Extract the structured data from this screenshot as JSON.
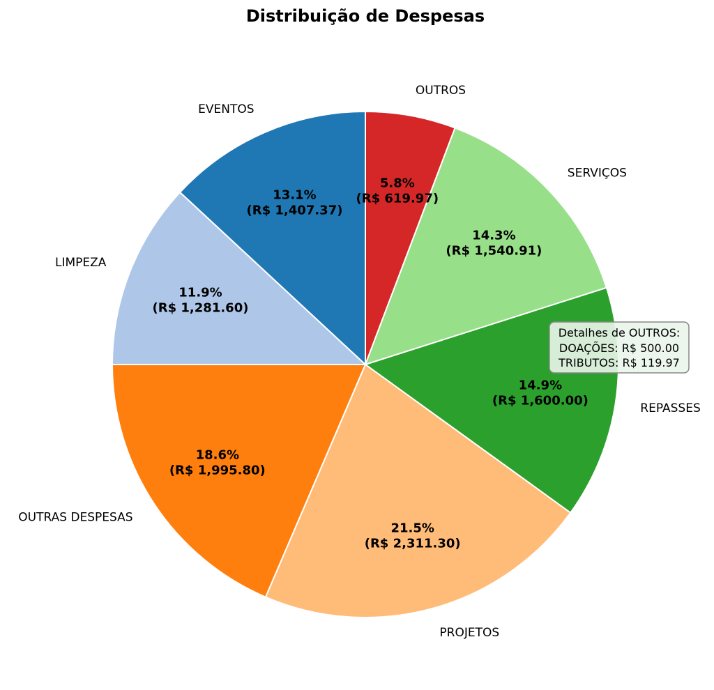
{
  "chart_data": {
    "type": "pie",
    "title": "Distribuição de Despesas",
    "start_angle_deg": 90,
    "direction": "clockwise",
    "slices": [
      {
        "label": "OUTROS",
        "pct_text": "5.8%",
        "value_text": "(R$ 619.97)",
        "value": 619.97,
        "color": "#d62728"
      },
      {
        "label": "SERVIÇOS",
        "pct_text": "14.3%",
        "value_text": "(R$ 1,540.91)",
        "value": 1540.91,
        "color": "#98df8a"
      },
      {
        "label": "REPASSES",
        "pct_text": "14.9%",
        "value_text": "(R$ 1,600.00)",
        "value": 1600.0,
        "color": "#2ca02c"
      },
      {
        "label": "PROJETOS",
        "pct_text": "21.5%",
        "value_text": "(R$ 2,311.30)",
        "value": 2311.3,
        "color": "#ffbb78"
      },
      {
        "label": "OUTRAS DESPESAS",
        "pct_text": "18.6%",
        "value_text": "(R$ 1,995.80)",
        "value": 1995.8,
        "color": "#ff7f0e"
      },
      {
        "label": "LIMPEZA",
        "pct_text": "11.9%",
        "value_text": "(R$ 1,281.60)",
        "value": 1281.6,
        "color": "#aec7e8"
      },
      {
        "label": "EVENTOS",
        "pct_text": "13.1%",
        "value_text": "(R$ 1,407.37)",
        "value": 1407.37,
        "color": "#1f77b4"
      }
    ],
    "annotation": {
      "lines": [
        "Detalhes de OUTROS:",
        "DOAÇÕES: R$ 500.00",
        "TRIBUTOS: R$ 119.97"
      ],
      "background": "#eaf5ea",
      "border": "#888888"
    }
  }
}
